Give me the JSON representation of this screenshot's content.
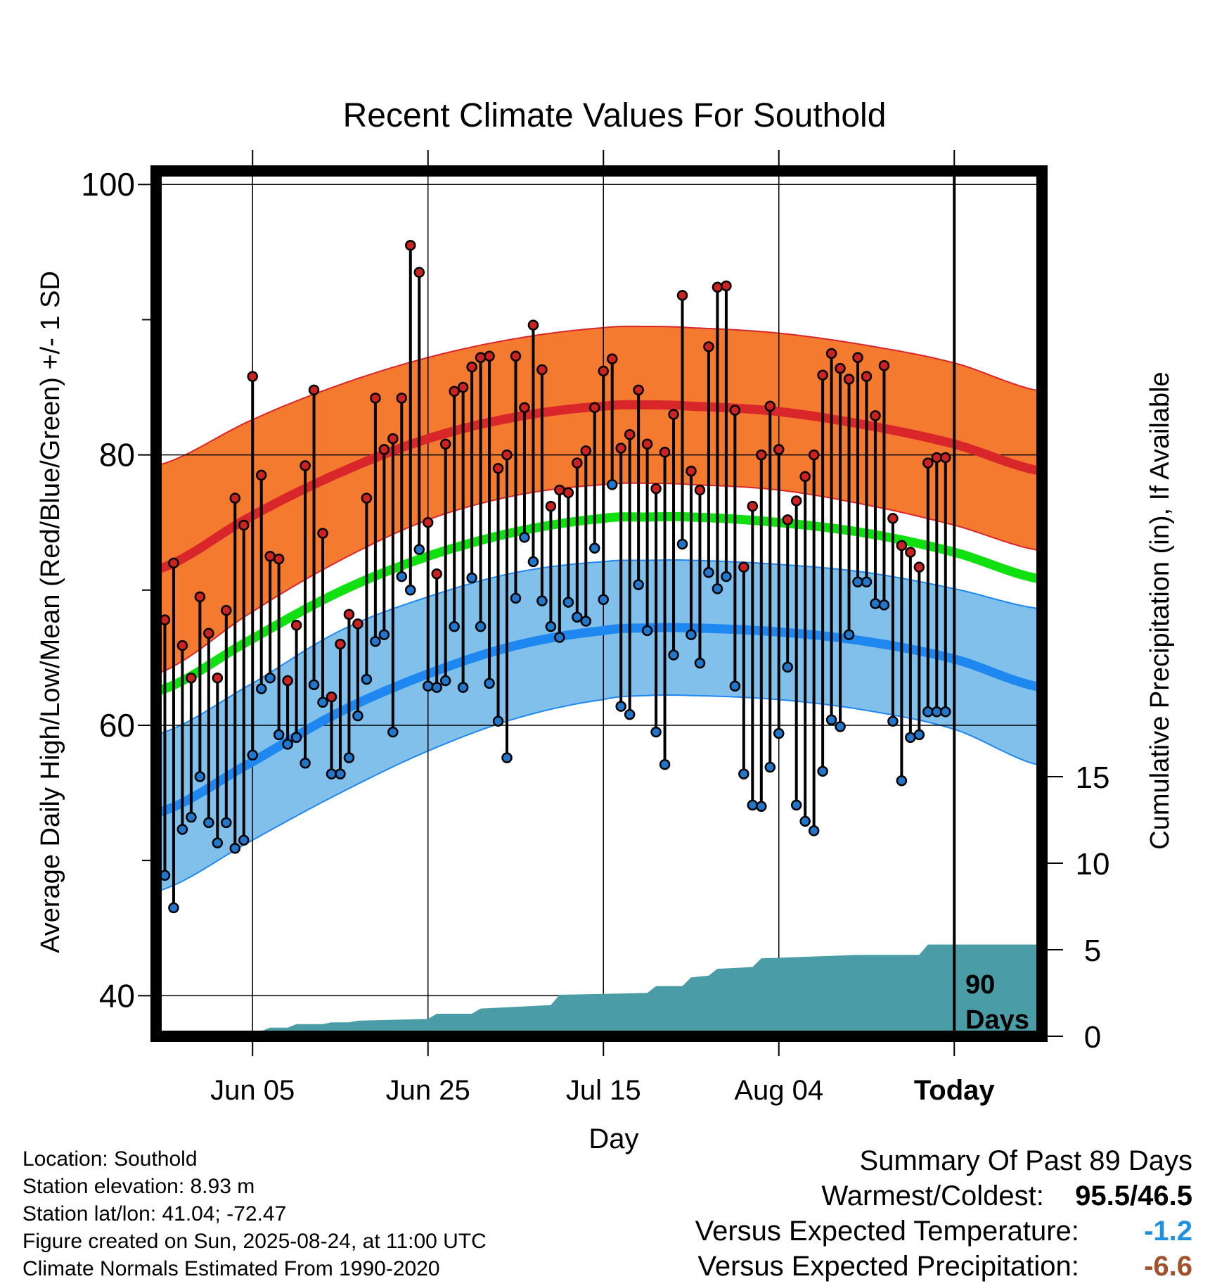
{
  "chart_data": {
    "type": "line",
    "title": "Recent Climate Values For Southold",
    "xlabel": "Day",
    "ylabel": "Average Daily High/Low/Mean (Red/Blue/Green) +/- 1 SD",
    "y2label": "Cumulative Precipitation (in), If Available",
    "ylim": [
      37,
      101
    ],
    "y2lim": [
      0,
      50
    ],
    "yticks": [
      "40",
      "60",
      "80",
      "100"
    ],
    "y2ticks": [
      "0",
      "5",
      "10",
      "15"
    ],
    "xtick_labels": [
      "Jun 05",
      "Jun 25",
      "Jul 15",
      "Aug 04",
      "Today"
    ],
    "xtick_days": [
      10,
      30,
      50,
      70,
      90
    ],
    "xrange": [
      -1,
      100
    ],
    "period_label": [
      "90",
      "Days"
    ],
    "colors": {
      "high_band": "#f47a2f",
      "high_line": "#d9262b",
      "low_band": "#80c0ea",
      "low_line": "#1e88f0",
      "mean_line": "#10e010",
      "precip": "#4a9da6",
      "high_marker": "#cc2222",
      "low_marker": "#2277cc"
    },
    "normals": {
      "days": [
        -1,
        10,
        20,
        30,
        40,
        50,
        55,
        60,
        70,
        80,
        90,
        100
      ],
      "high_mean": [
        71.5,
        75.5,
        78.7,
        81.2,
        82.8,
        83.6,
        83.7,
        83.6,
        83.2,
        82.2,
        80.8,
        78.8
      ],
      "high_sd": [
        7.7,
        7.1,
        6.5,
        6.0,
        5.8,
        5.8,
        5.8,
        5.8,
        5.8,
        5.9,
        6.0,
        5.9
      ],
      "low_mean": [
        53.5,
        57.3,
        61.0,
        63.8,
        65.9,
        67.0,
        67.2,
        67.2,
        66.9,
        66.2,
        64.9,
        62.8
      ],
      "low_sd": [
        5.8,
        5.8,
        6.0,
        5.7,
        5.4,
        5.1,
        5.0,
        5.0,
        5.0,
        5.1,
        5.2,
        5.8
      ],
      "avg_mean": [
        62.5,
        66.4,
        69.9,
        72.5,
        74.3,
        75.3,
        75.4,
        75.4,
        75.0,
        74.2,
        72.8,
        70.8
      ]
    },
    "series": [
      {
        "name": "High",
        "x": [
          0,
          1,
          2,
          3,
          4,
          5,
          6,
          7,
          8,
          9,
          10,
          11,
          12,
          13,
          14,
          15,
          16,
          17,
          18,
          19,
          20,
          21,
          22,
          23,
          24,
          25,
          26,
          27,
          28,
          29,
          30,
          31,
          32,
          33,
          34,
          35,
          36,
          37,
          38,
          39,
          40,
          41,
          42,
          43,
          44,
          45,
          46,
          47,
          48,
          49,
          50,
          51,
          52,
          53,
          54,
          55,
          56,
          57,
          58,
          59,
          60,
          61,
          62,
          63,
          64,
          65,
          66,
          67,
          68,
          69,
          70,
          71,
          72,
          73,
          74,
          75,
          76,
          77,
          78,
          79,
          80,
          81,
          82,
          83,
          84,
          85,
          86,
          87,
          88,
          89
        ],
        "values": [
          67.8,
          72.0,
          65.9,
          63.5,
          69.5,
          66.8,
          63.5,
          68.5,
          76.8,
          74.8,
          85.8,
          78.5,
          72.5,
          72.3,
          63.3,
          67.4,
          79.2,
          84.8,
          74.2,
          62.1,
          66.0,
          68.2,
          67.5,
          76.8,
          84.2,
          80.4,
          81.2,
          84.2,
          95.5,
          93.5,
          75.0,
          71.2,
          80.8,
          84.7,
          85.0,
          86.5,
          87.2,
          87.3,
          79.0,
          80.0,
          87.3,
          83.5,
          89.6,
          86.3,
          76.2,
          77.4,
          77.2,
          79.4,
          80.3,
          83.5,
          86.2,
          87.1,
          80.5,
          81.5,
          84.8,
          80.8,
          77.5,
          80.2,
          83.0,
          91.8,
          78.8,
          77.4,
          88.0,
          92.4,
          92.5,
          83.3,
          71.7,
          76.2,
          80.0,
          83.6,
          80.4,
          75.2,
          76.6,
          78.4,
          80.0,
          85.9,
          87.5,
          86.4,
          85.6,
          87.2,
          85.8,
          82.9,
          86.6,
          75.3,
          73.3,
          72.8,
          71.7,
          79.4,
          79.8,
          79.8
        ]
      },
      {
        "name": "Low",
        "x": [
          0,
          1,
          2,
          3,
          4,
          5,
          6,
          7,
          8,
          9,
          10,
          11,
          12,
          13,
          14,
          15,
          16,
          17,
          18,
          19,
          20,
          21,
          22,
          23,
          24,
          25,
          26,
          27,
          28,
          29,
          30,
          31,
          32,
          33,
          34,
          35,
          36,
          37,
          38,
          39,
          40,
          41,
          42,
          43,
          44,
          45,
          46,
          47,
          48,
          49,
          50,
          51,
          52,
          53,
          54,
          55,
          56,
          57,
          58,
          59,
          60,
          61,
          62,
          63,
          64,
          65,
          66,
          67,
          68,
          69,
          70,
          71,
          72,
          73,
          74,
          75,
          76,
          77,
          78,
          79,
          80,
          81,
          82,
          83,
          84,
          85,
          86,
          87,
          88,
          89
        ],
        "values": [
          48.9,
          46.5,
          52.3,
          53.2,
          56.2,
          52.8,
          51.3,
          52.8,
          50.9,
          51.5,
          57.8,
          62.7,
          63.5,
          59.3,
          58.6,
          59.1,
          57.2,
          63.0,
          61.7,
          56.4,
          56.4,
          57.6,
          60.7,
          63.4,
          66.2,
          66.7,
          59.5,
          71.0,
          70.0,
          73.0,
          62.9,
          62.8,
          63.3,
          67.3,
          62.8,
          70.9,
          67.3,
          63.1,
          60.3,
          57.6,
          69.4,
          73.9,
          72.1,
          69.2,
          67.3,
          66.5,
          69.1,
          68.0,
          67.7,
          73.1,
          69.3,
          77.8,
          61.4,
          60.8,
          70.4,
          67.0,
          59.5,
          57.1,
          65.2,
          73.4,
          66.7,
          64.6,
          71.3,
          70.1,
          71.0,
          62.9,
          56.4,
          54.1,
          54.0,
          56.9,
          59.4,
          64.3,
          54.1,
          52.9,
          52.2,
          56.6,
          60.4,
          59.9,
          66.7,
          70.6,
          70.6,
          69.0,
          68.9,
          60.3,
          55.9,
          59.1,
          59.3,
          61.0,
          61.0,
          61.0
        ]
      },
      {
        "name": "Precipitation",
        "x": [
          0,
          4,
          5,
          11,
          12,
          14,
          15,
          18,
          19,
          21,
          22,
          30,
          31,
          35,
          36,
          44,
          45,
          55,
          56,
          59,
          60,
          62,
          63,
          67,
          68,
          79,
          80,
          86,
          87,
          100
        ],
        "values": [
          0,
          0,
          0.3,
          0.3,
          0.5,
          0.5,
          0.7,
          0.7,
          0.8,
          0.8,
          0.9,
          1.0,
          1.3,
          1.3,
          1.6,
          1.8,
          2.4,
          2.5,
          2.9,
          2.9,
          3.4,
          3.5,
          3.9,
          4.0,
          4.5,
          4.7,
          4.7,
          4.7,
          5.3,
          5.3
        ]
      }
    ]
  },
  "info": {
    "location": "Location: Southold",
    "elevation": "Station elevation: 8.93 m",
    "latlon": "Station lat/lon: 41.04; -72.47",
    "created": "Figure created on Sun, 2025-08-24, at 11:00 UTC",
    "normals": "Climate Normals Estimated From 1990-2020"
  },
  "summary": {
    "title": "Summary Of Past 89 Days",
    "extremes_label": "Warmest/Coldest:",
    "extremes_value": "95.5/46.5",
    "temp_label": "Versus Expected Temperature:",
    "temp_value": "-1.2",
    "prcp_label": "Versus Expected Precipitation:",
    "prcp_value": "-6.6"
  }
}
